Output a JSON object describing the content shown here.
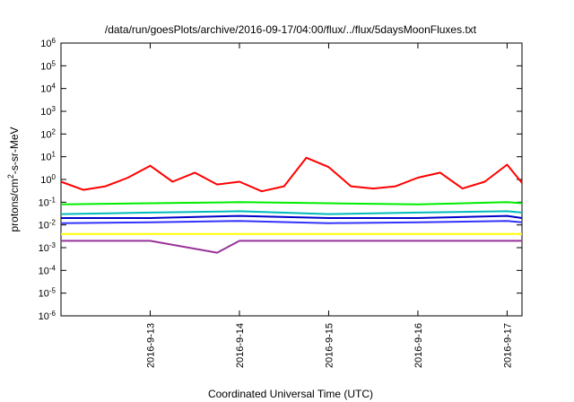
{
  "chart_data": {
    "type": "line",
    "title": "/data/run/goesPlots/archive/2016-09-17/04:00/flux/../flux/5daysMoonFluxes.txt",
    "xlabel": "Coordinated Universal Time (UTC)",
    "ylabel": {
      "base": "protons/cm",
      "superscript": "2",
      "rest": "-s-sr-MeV"
    },
    "yscale": "log",
    "ylim_exp": [
      -6,
      6
    ],
    "y_ticks": [
      {
        "base": "10",
        "exp": "6"
      },
      {
        "base": "10",
        "exp": "5"
      },
      {
        "base": "10",
        "exp": "4"
      },
      {
        "base": "10",
        "exp": "3"
      },
      {
        "base": "10",
        "exp": "2"
      },
      {
        "base": "10",
        "exp": "1"
      },
      {
        "base": "10",
        "exp": "0"
      },
      {
        "base": "10",
        "exp": "-1"
      },
      {
        "base": "10",
        "exp": "-2"
      },
      {
        "base": "10",
        "exp": "-3"
      },
      {
        "base": "10",
        "exp": "-4"
      },
      {
        "base": "10",
        "exp": "-5"
      },
      {
        "base": "10",
        "exp": "-6"
      }
    ],
    "xlim": [
      "2016-09-12T00:00",
      "2016-09-17T04:00"
    ],
    "x_ticks": [
      "2016-9-13",
      "2016-9-14",
      "2016-9-15",
      "2016-9-16",
      "2016-9-17"
    ],
    "grid": false,
    "series": [
      {
        "color": "#ff0000",
        "x": [
          "2016-09-12T00:00",
          "2016-09-12T06:00",
          "2016-09-12T12:00",
          "2016-09-12T18:00",
          "2016-09-13T00:00",
          "2016-09-13T06:00",
          "2016-09-13T12:00",
          "2016-09-13T18:00",
          "2016-09-14T00:00",
          "2016-09-14T06:00",
          "2016-09-14T12:00",
          "2016-09-14T18:00",
          "2016-09-15T00:00",
          "2016-09-15T06:00",
          "2016-09-15T12:00",
          "2016-09-15T18:00",
          "2016-09-16T00:00",
          "2016-09-16T06:00",
          "2016-09-16T12:00",
          "2016-09-16T18:00",
          "2016-09-17T00:00",
          "2016-09-17T04:00"
        ],
        "values": [
          0.8,
          0.35,
          0.5,
          1.2,
          4.0,
          0.8,
          2.0,
          0.6,
          0.8,
          0.3,
          0.5,
          9.0,
          3.5,
          0.5,
          0.4,
          0.5,
          1.2,
          2.0,
          0.4,
          0.8,
          4.5,
          0.7
        ]
      },
      {
        "color": "#00ee00",
        "x": [
          "2016-09-12T00:00",
          "2016-09-13T00:00",
          "2016-09-14T00:00",
          "2016-09-15T00:00",
          "2016-09-16T00:00",
          "2016-09-17T00:00",
          "2016-09-17T04:00"
        ],
        "values": [
          0.08,
          0.09,
          0.1,
          0.09,
          0.08,
          0.1,
          0.09
        ]
      },
      {
        "color": "#00bbbb",
        "x": [
          "2016-09-12T00:00",
          "2016-09-13T00:00",
          "2016-09-14T00:00",
          "2016-09-15T00:00",
          "2016-09-16T00:00",
          "2016-09-17T00:00",
          "2016-09-17T04:00"
        ],
        "values": [
          0.03,
          0.035,
          0.04,
          0.03,
          0.035,
          0.04,
          0.035
        ]
      },
      {
        "color": "#0000cc",
        "x": [
          "2016-09-12T00:00",
          "2016-09-13T00:00",
          "2016-09-14T00:00",
          "2016-09-15T00:00",
          "2016-09-16T00:00",
          "2016-09-17T00:00",
          "2016-09-17T04:00"
        ],
        "values": [
          0.02,
          0.02,
          0.025,
          0.02,
          0.02,
          0.025,
          0.02
        ]
      },
      {
        "color": "#3333ff",
        "x": [
          "2016-09-12T00:00",
          "2016-09-13T00:00",
          "2016-09-14T00:00",
          "2016-09-15T00:00",
          "2016-09-16T00:00",
          "2016-09-17T00:00",
          "2016-09-17T04:00"
        ],
        "values": [
          0.012,
          0.013,
          0.015,
          0.012,
          0.013,
          0.015,
          0.013
        ]
      },
      {
        "color": "#ffff00",
        "x": [
          "2016-09-12T00:00",
          "2016-09-13T00:00",
          "2016-09-14T00:00",
          "2016-09-15T00:00",
          "2016-09-16T00:00",
          "2016-09-17T00:00",
          "2016-09-17T04:00"
        ],
        "values": [
          0.004,
          0.004,
          0.004,
          0.004,
          0.004,
          0.004,
          0.004
        ]
      },
      {
        "color": "#993399",
        "x": [
          "2016-09-12T00:00",
          "2016-09-13T00:00",
          "2016-09-13T18:00",
          "2016-09-14T00:00",
          "2016-09-15T00:00",
          "2016-09-16T00:00",
          "2016-09-17T00:00",
          "2016-09-17T04:00"
        ],
        "values": [
          0.002,
          0.002,
          0.0006,
          0.002,
          0.002,
          0.002,
          0.002,
          0.002
        ]
      }
    ]
  }
}
